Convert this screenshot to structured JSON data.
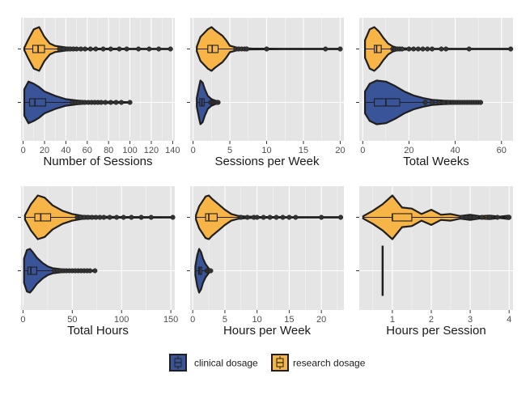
{
  "colors": {
    "clinical": "#3a5499",
    "research": "#f7b547",
    "panel_bg": "#e5e5e5",
    "grid": "#ffffff",
    "outline": "#1f1f1f"
  },
  "legend": [
    {
      "key": "clinical",
      "label": "clinical dosage"
    },
    {
      "key": "research",
      "label": "research dosage"
    }
  ],
  "chart_data": [
    {
      "type": "violin",
      "xlabel": "Number of Sessions",
      "xlim": [
        -2,
        142
      ],
      "xticks": [
        0,
        20,
        40,
        60,
        80,
        100,
        120,
        140
      ],
      "grid": true,
      "series": [
        {
          "key": "research",
          "box": {
            "q1": 9,
            "median": 14,
            "q3": 20
          },
          "density": [
            [
              1,
              0.05
            ],
            [
              5,
              0.45
            ],
            [
              10,
              0.9
            ],
            [
              15,
              1.0
            ],
            [
              20,
              0.55
            ],
            [
              25,
              0.25
            ],
            [
              30,
              0.14
            ],
            [
              40,
              0.07
            ],
            [
              50,
              0.04
            ],
            [
              60,
              0.02
            ],
            [
              80,
              0.015
            ],
            [
              100,
              0.01
            ],
            [
              138,
              0.01
            ]
          ],
          "outliers": [
            34,
            38,
            41,
            44,
            47,
            50,
            54,
            58,
            63,
            68,
            75,
            82,
            90,
            97,
            108,
            118,
            127,
            138
          ]
        },
        {
          "key": "clinical",
          "box": {
            "q1": 6,
            "median": 11,
            "q3": 21
          },
          "density": [
            [
              1,
              0.6
            ],
            [
              5,
              0.95
            ],
            [
              10,
              0.85
            ],
            [
              15,
              0.7
            ],
            [
              20,
              0.5
            ],
            [
              30,
              0.3
            ],
            [
              40,
              0.15
            ],
            [
              50,
              0.09
            ],
            [
              60,
              0.05
            ],
            [
              70,
              0.04
            ],
            [
              80,
              0.03
            ],
            [
              100,
              0.01
            ]
          ],
          "outliers": [
            46,
            49,
            52,
            55,
            58,
            61,
            64,
            67,
            70,
            73,
            77,
            82,
            87,
            92,
            100
          ]
        }
      ]
    },
    {
      "type": "violin",
      "xlabel": "Sessions per Week",
      "xlim": [
        -0.4,
        20.5
      ],
      "xticks": [
        0,
        5,
        10,
        15,
        20
      ],
      "grid": true,
      "series": [
        {
          "key": "research",
          "box": {
            "q1": 2.0,
            "median": 2.6,
            "q3": 3.4
          },
          "density": [
            [
              0.5,
              0.1
            ],
            [
              1,
              0.55
            ],
            [
              2,
              0.9
            ],
            [
              2.5,
              1.0
            ],
            [
              3,
              0.85
            ],
            [
              4,
              0.6
            ],
            [
              4.5,
              0.4
            ],
            [
              5,
              0.15
            ],
            [
              6,
              0.06
            ],
            [
              7,
              0.03
            ],
            [
              8,
              0.02
            ],
            [
              12,
              0.01
            ],
            [
              20,
              0.01
            ]
          ],
          "outliers": [
            5.8,
            6.2,
            6.6,
            7.0,
            7.3,
            10.0,
            18.0,
            20.0
          ]
        },
        {
          "key": "clinical",
          "box": {
            "q1": 0.9,
            "median": 1.2,
            "q3": 1.5
          },
          "density": [
            [
              0.5,
              0.2
            ],
            [
              0.8,
              0.7
            ],
            [
              1,
              1.0
            ],
            [
              1.3,
              0.9
            ],
            [
              1.6,
              0.6
            ],
            [
              2,
              0.3
            ],
            [
              2.5,
              0.15
            ],
            [
              3,
              0.08
            ],
            [
              3.5,
              0.03
            ]
          ],
          "outliers": [
            2.4,
            2.6,
            2.8,
            3.0,
            3.2,
            3.4
          ]
        }
      ]
    },
    {
      "type": "violin",
      "xlabel": "Total Weeks",
      "xlim": [
        -1.5,
        65
      ],
      "xticks": [
        0,
        20,
        40,
        60
      ],
      "grid": true,
      "series": [
        {
          "key": "research",
          "box": {
            "q1": 5,
            "median": 6,
            "q3": 8
          },
          "density": [
            [
              1,
              0.4
            ],
            [
              3,
              0.9
            ],
            [
              5,
              1.0
            ],
            [
              7,
              0.8
            ],
            [
              9,
              0.5
            ],
            [
              11,
              0.25
            ],
            [
              13,
              0.12
            ],
            [
              15,
              0.05
            ],
            [
              20,
              0.02
            ],
            [
              30,
              0.01
            ],
            [
              64,
              0.01
            ]
          ],
          "outliers": [
            13,
            14,
            15,
            16,
            17,
            20,
            22,
            24,
            26,
            28,
            30,
            34,
            36,
            46,
            64
          ]
        },
        {
          "key": "clinical",
          "box": {
            "q1": 5,
            "median": 10,
            "q3": 16
          },
          "density": [
            [
              1,
              0.5
            ],
            [
              3,
              0.85
            ],
            [
              6,
              1.0
            ],
            [
              10,
              0.95
            ],
            [
              14,
              0.75
            ],
            [
              18,
              0.5
            ],
            [
              22,
              0.32
            ],
            [
              26,
              0.2
            ],
            [
              30,
              0.12
            ],
            [
              35,
              0.08
            ],
            [
              40,
              0.06
            ],
            [
              45,
              0.05
            ],
            [
              51,
              0.03
            ]
          ],
          "outliers": [
            27,
            30,
            33,
            35,
            37,
            39,
            40,
            41,
            42,
            43,
            44,
            45,
            46,
            47,
            48,
            49,
            50,
            51
          ]
        }
      ]
    },
    {
      "type": "violin",
      "xlabel": "Total Hours",
      "xlim": [
        -2,
        154
      ],
      "xticks": [
        0,
        50,
        100,
        150
      ],
      "grid": true,
      "series": [
        {
          "key": "research",
          "box": {
            "q1": 12,
            "median": 18,
            "q3": 28
          },
          "density": [
            [
              2,
              0.1
            ],
            [
              8,
              0.6
            ],
            [
              15,
              1.0
            ],
            [
              22,
              0.9
            ],
            [
              30,
              0.55
            ],
            [
              40,
              0.3
            ],
            [
              50,
              0.15
            ],
            [
              60,
              0.07
            ],
            [
              80,
              0.03
            ],
            [
              100,
              0.015
            ],
            [
              152,
              0.01
            ]
          ],
          "outliers": [
            55,
            58,
            62,
            66,
            70,
            74,
            78,
            82,
            88,
            95,
            102,
            110,
            120,
            130,
            152
          ]
        },
        {
          "key": "clinical",
          "box": {
            "q1": 5,
            "median": 8,
            "q3": 14
          },
          "density": [
            [
              1,
              0.55
            ],
            [
              4,
              0.95
            ],
            [
              7,
              1.0
            ],
            [
              10,
              0.85
            ],
            [
              14,
              0.6
            ],
            [
              20,
              0.35
            ],
            [
              25,
              0.2
            ],
            [
              30,
              0.12
            ],
            [
              40,
              0.06
            ],
            [
              50,
              0.04
            ],
            [
              60,
              0.03
            ],
            [
              73,
              0.02
            ]
          ],
          "outliers": [
            32,
            35,
            38,
            41,
            44,
            47,
            50,
            53,
            56,
            59,
            62,
            65,
            68,
            73
          ]
        }
      ]
    },
    {
      "type": "violin",
      "xlabel": "Hours per Week",
      "xlim": [
        -0.4,
        23.5
      ],
      "xticks": [
        0,
        5,
        10,
        15,
        20
      ],
      "grid": true,
      "series": [
        {
          "key": "research",
          "box": {
            "q1": 2.0,
            "median": 2.5,
            "q3": 3.8
          },
          "density": [
            [
              0.5,
              0.1
            ],
            [
              1,
              0.5
            ],
            [
              2,
              0.95
            ],
            [
              2.5,
              1.0
            ],
            [
              3,
              0.85
            ],
            [
              4,
              0.6
            ],
            [
              5,
              0.35
            ],
            [
              6,
              0.15
            ],
            [
              7,
              0.07
            ],
            [
              8,
              0.04
            ],
            [
              10,
              0.02
            ],
            [
              15,
              0.01
            ],
            [
              23,
              0.01
            ]
          ],
          "outliers": [
            7.5,
            8.5,
            9.5,
            10.0,
            11.0,
            12.0,
            13.0,
            14.0,
            15.0,
            16.0,
            20.0,
            23.0
          ]
        },
        {
          "key": "clinical",
          "box": {
            "q1": 0.9,
            "median": 1.1,
            "q3": 1.4
          },
          "density": [
            [
              0.4,
              0.2
            ],
            [
              0.7,
              0.7
            ],
            [
              1,
              1.0
            ],
            [
              1.3,
              0.85
            ],
            [
              1.6,
              0.55
            ],
            [
              2,
              0.3
            ],
            [
              2.5,
              0.1
            ],
            [
              2.8,
              0.03
            ]
          ],
          "outliers": [
            2.2,
            2.4,
            2.6,
            2.8
          ]
        }
      ]
    },
    {
      "type": "violin",
      "xlabel": "Hours per Session",
      "xlim": [
        0.15,
        4.1
      ],
      "xticks": [
        1,
        2,
        3,
        4
      ],
      "grid": true,
      "series": [
        {
          "key": "research",
          "box": {
            "q1": 1.0,
            "median": 1.0,
            "q3": 1.5
          },
          "density": [
            [
              0.25,
              0.05
            ],
            [
              0.5,
              0.3
            ],
            [
              0.75,
              0.6
            ],
            [
              1,
              1.0
            ],
            [
              1.25,
              0.45
            ],
            [
              1.5,
              0.4
            ],
            [
              1.75,
              0.15
            ],
            [
              2,
              0.35
            ],
            [
              2.25,
              0.12
            ],
            [
              2.5,
              0.15
            ],
            [
              2.75,
              0.06
            ],
            [
              3,
              0.12
            ],
            [
              3.25,
              0.05
            ],
            [
              3.5,
              0.08
            ],
            [
              3.75,
              0.03
            ],
            [
              4,
              0.08
            ]
          ],
          "outliers": [
            2.8,
            2.9,
            3.0,
            3.1,
            3.3,
            3.5,
            3.7,
            4.0
          ]
        },
        {
          "key": "clinical",
          "box": {
            "q1": 0.75,
            "median": 0.75,
            "q3": 0.75
          },
          "density": [],
          "outliers": []
        }
      ]
    }
  ]
}
